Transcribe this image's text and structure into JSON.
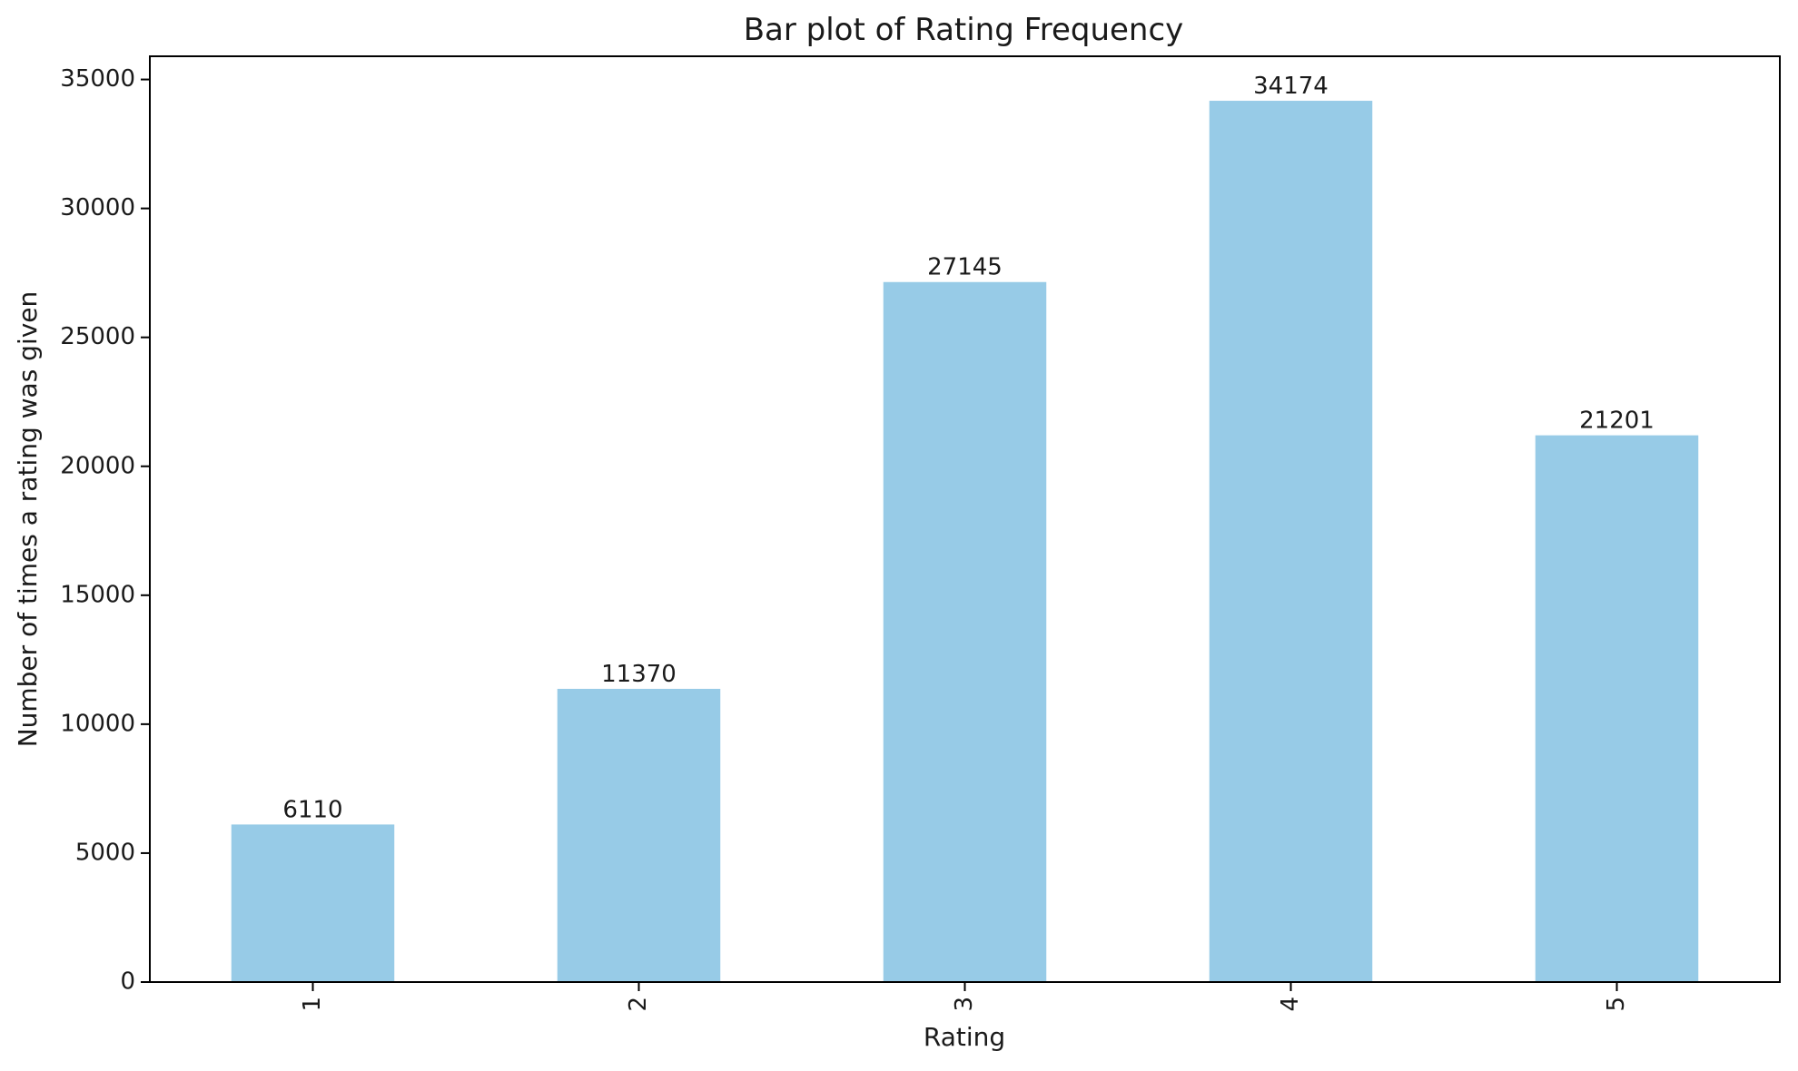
{
  "chart_data": {
    "type": "bar",
    "title": "Bar plot of Rating Frequency",
    "xlabel": "Rating",
    "ylabel": "Number of times a rating was given",
    "categories": [
      "1",
      "2",
      "3",
      "4",
      "5"
    ],
    "values": [
      6110,
      11370,
      27145,
      34174,
      21201
    ],
    "data_labels": [
      "6110",
      "11370",
      "27145",
      "34174",
      "21201"
    ],
    "ylim": [
      0,
      35900
    ],
    "yticks": [
      0,
      5000,
      10000,
      15000,
      20000,
      25000,
      30000,
      35000
    ],
    "ytick_labels": [
      "0",
      "5000",
      "10000",
      "15000",
      "20000",
      "25000",
      "30000",
      "35000"
    ],
    "xtick_rotation": "vertical",
    "grid": false,
    "legend": "none",
    "bar_color": "#97cbe7",
    "axis_color": "#000000"
  }
}
